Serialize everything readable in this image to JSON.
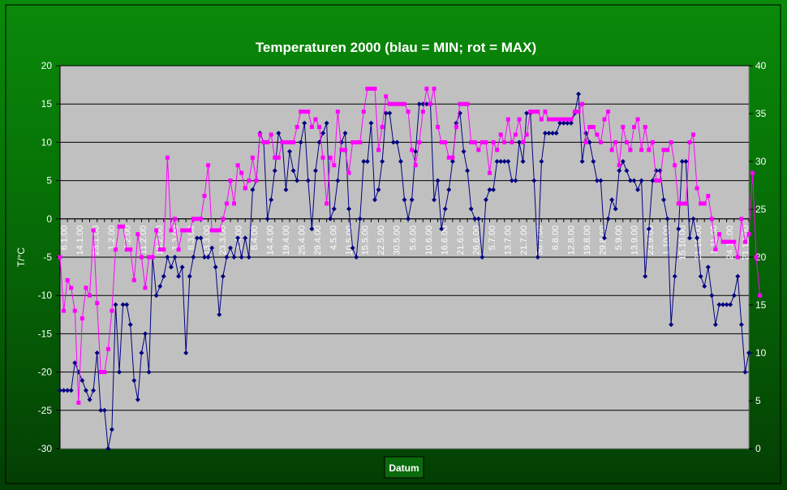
{
  "chart_data": {
    "type": "line",
    "title": "Temperaturen 2000 (blau = MIN; rot  = MAX)",
    "xlabel": "Datum",
    "ylabel": "T/°C",
    "ylim": [
      -30,
      20
    ],
    "y_ticks": [
      20,
      15,
      10,
      5,
      0,
      -5,
      -10,
      -15,
      -20,
      -25,
      -30
    ],
    "y2lim": [
      0,
      40
    ],
    "y2_ticks": [
      40,
      35,
      30,
      25,
      20,
      15,
      10,
      5,
      0
    ],
    "grid": true,
    "legend": "none",
    "x_tick_labels": [
      "6.1.00",
      "14.1.00",
      "23.1.00",
      "1.2.00",
      "7.2.00",
      "11.2.00",
      "18.2.00",
      "1.3.00",
      "8.3.00",
      "13.3.00",
      "23.3.00",
      "2.4.00",
      "8.4.00",
      "14.4.00",
      "19.4.00",
      "25.4.00",
      "29.4.00",
      "4.5.00",
      "10.5.00",
      "15.5.00",
      "22.5.00",
      "30.5.00",
      "5.6.00",
      "10.6.00",
      "16.6.00",
      "21.6.00",
      "26.6.00",
      "5.7.00",
      "13.7.00",
      "21.7.00",
      "30.7.00",
      "6.8.00",
      "12.8.00",
      "19.8.00",
      "29.8.00",
      "5.9.00",
      "13.9.00",
      "23.9.00",
      "1.10.00",
      "15.10.00",
      "21.10.00",
      "1.11.00",
      "24.11.00",
      "21.12.00"
    ],
    "series": [
      {
        "color": "#000080",
        "values": [
          -22.4,
          -22.4,
          -22.4,
          -22.4,
          -18.8,
          -20.0,
          -21.1,
          -22.4,
          -23.6,
          -22.4,
          -17.5,
          -25.0,
          -25.0,
          -30.0,
          -27.5,
          -11.2,
          -20.0,
          -11.2,
          -11.2,
          -13.8,
          -21.1,
          -23.6,
          -17.5,
          -15.0,
          -20.0,
          -5.0,
          -10.0,
          -8.8,
          -7.5,
          -5.0,
          -6.3,
          -5.0,
          -7.5,
          -6.3,
          -17.5,
          -7.5,
          -5.0,
          -2.5,
          -2.5,
          -5.0,
          -5.0,
          -3.8,
          -6.3,
          -12.5,
          -7.5,
          -5.0,
          -3.8,
          -5.0,
          -2.5,
          -5.0,
          -2.5,
          -5.0,
          3.8,
          5.0,
          11.2,
          10.0,
          0.0,
          2.5,
          6.3,
          11.2,
          10.0,
          3.8,
          8.8,
          6.3,
          5.0,
          10.0,
          12.5,
          5.0,
          -1.3,
          6.3,
          10.0,
          11.2,
          12.5,
          0.0,
          1.3,
          5.0,
          10.0,
          11.2,
          1.3,
          -3.8,
          -5.0,
          0.0,
          7.5,
          7.5,
          12.5,
          2.5,
          3.8,
          7.5,
          13.8,
          13.8,
          10.0,
          10.0,
          7.5,
          2.5,
          0.0,
          2.5,
          8.8,
          15.0,
          15.0,
          15.0,
          15.0,
          2.5,
          5.0,
          -1.3,
          1.3,
          3.8,
          7.5,
          12.5,
          13.8,
          8.8,
          6.3,
          1.3,
          0.0,
          0.0,
          -5.0,
          2.5,
          3.8,
          3.8,
          7.5,
          7.5,
          7.5,
          7.5,
          5.0,
          5.0,
          10.0,
          7.5,
          13.8,
          13.8,
          5.0,
          -5.0,
          7.5,
          11.2,
          11.2,
          11.2,
          11.2,
          12.5,
          12.5,
          12.5,
          12.5,
          13.8,
          16.3,
          7.5,
          11.2,
          10.0,
          7.5,
          5.0,
          5.0,
          -2.5,
          0.0,
          2.5,
          1.3,
          6.3,
          7.5,
          6.3,
          5.0,
          5.0,
          3.8,
          5.0,
          -7.5,
          -1.3,
          5.0,
          6.3,
          6.3,
          2.5,
          0.0,
          -13.8,
          -7.5,
          -1.3,
          7.5,
          7.5,
          -2.5,
          0.0,
          -2.5,
          -7.5,
          -8.8,
          -6.3,
          -10.0,
          -13.8,
          -11.2,
          -11.2,
          -11.2,
          -11.2,
          -10.0,
          -7.5,
          -13.8,
          -20.0,
          -17.5
        ]
      },
      {
        "color": "#ff00ff",
        "values": [
          -5.0,
          -12.0,
          -8.0,
          -9.0,
          -12.0,
          -24.0,
          -13.0,
          -9.0,
          -10.0,
          -1.5,
          -11.0,
          -20.0,
          -20.0,
          -17.0,
          -12.0,
          -4.0,
          -1.0,
          -1.0,
          -4.0,
          -4.0,
          -8.0,
          -2.0,
          -5.0,
          -9.0,
          -5.0,
          -5.0,
          -1.5,
          -4.0,
          -4.0,
          8.0,
          -1.5,
          0.0,
          -4.0,
          -1.5,
          -1.5,
          -1.5,
          0.0,
          0.0,
          0.0,
          3.0,
          7.0,
          -1.5,
          -1.5,
          -1.5,
          0.0,
          2.0,
          5.0,
          2.0,
          7.0,
          6.0,
          4.0,
          5.0,
          8.0,
          5.0,
          11.0,
          10.0,
          10.0,
          11.0,
          8.0,
          8.0,
          10.0,
          10.0,
          10.0,
          10.0,
          12.0,
          14.0,
          14.0,
          14.0,
          12.0,
          13.0,
          12.0,
          8.0,
          2.0,
          8.0,
          7.0,
          14.0,
          9.0,
          9.0,
          6.0,
          10.0,
          10.0,
          10.0,
          14.0,
          17.0,
          17.0,
          17.0,
          9.0,
          12.0,
          16.0,
          15.0,
          15.0,
          15.0,
          15.0,
          15.0,
          14.0,
          9.0,
          7.0,
          10.0,
          14.0,
          17.0,
          15.0,
          17.0,
          12.0,
          10.0,
          10.0,
          8.0,
          8.0,
          12.0,
          15.0,
          15.0,
          15.0,
          10.0,
          10.0,
          9.0,
          10.0,
          10.0,
          6.0,
          10.0,
          9.0,
          11.0,
          10.0,
          13.0,
          10.0,
          11.0,
          13.0,
          10.0,
          11.0,
          14.0,
          14.0,
          14.0,
          13.0,
          14.0,
          13.0,
          13.0,
          13.0,
          13.0,
          13.0,
          13.0,
          13.0,
          14.0,
          14.0,
          15.0,
          10.0,
          12.0,
          12.0,
          11.0,
          10.0,
          13.0,
          14.0,
          9.0,
          10.0,
          7.0,
          12.0,
          10.0,
          9.0,
          12.0,
          13.0,
          9.0,
          12.0,
          9.0,
          10.0,
          5.0,
          5.0,
          9.0,
          9.0,
          10.0,
          7.0,
          2.0,
          2.0,
          2.0,
          10.0,
          11.0,
          4.0,
          2.0,
          2.0,
          3.0,
          0.0,
          -4.0,
          -2.0,
          -3.0,
          -3.0,
          -3.0,
          -3.0,
          -5.0,
          0.0,
          -3.0,
          -2.0,
          6.0,
          -5.0,
          -10.0
        ]
      }
    ]
  }
}
